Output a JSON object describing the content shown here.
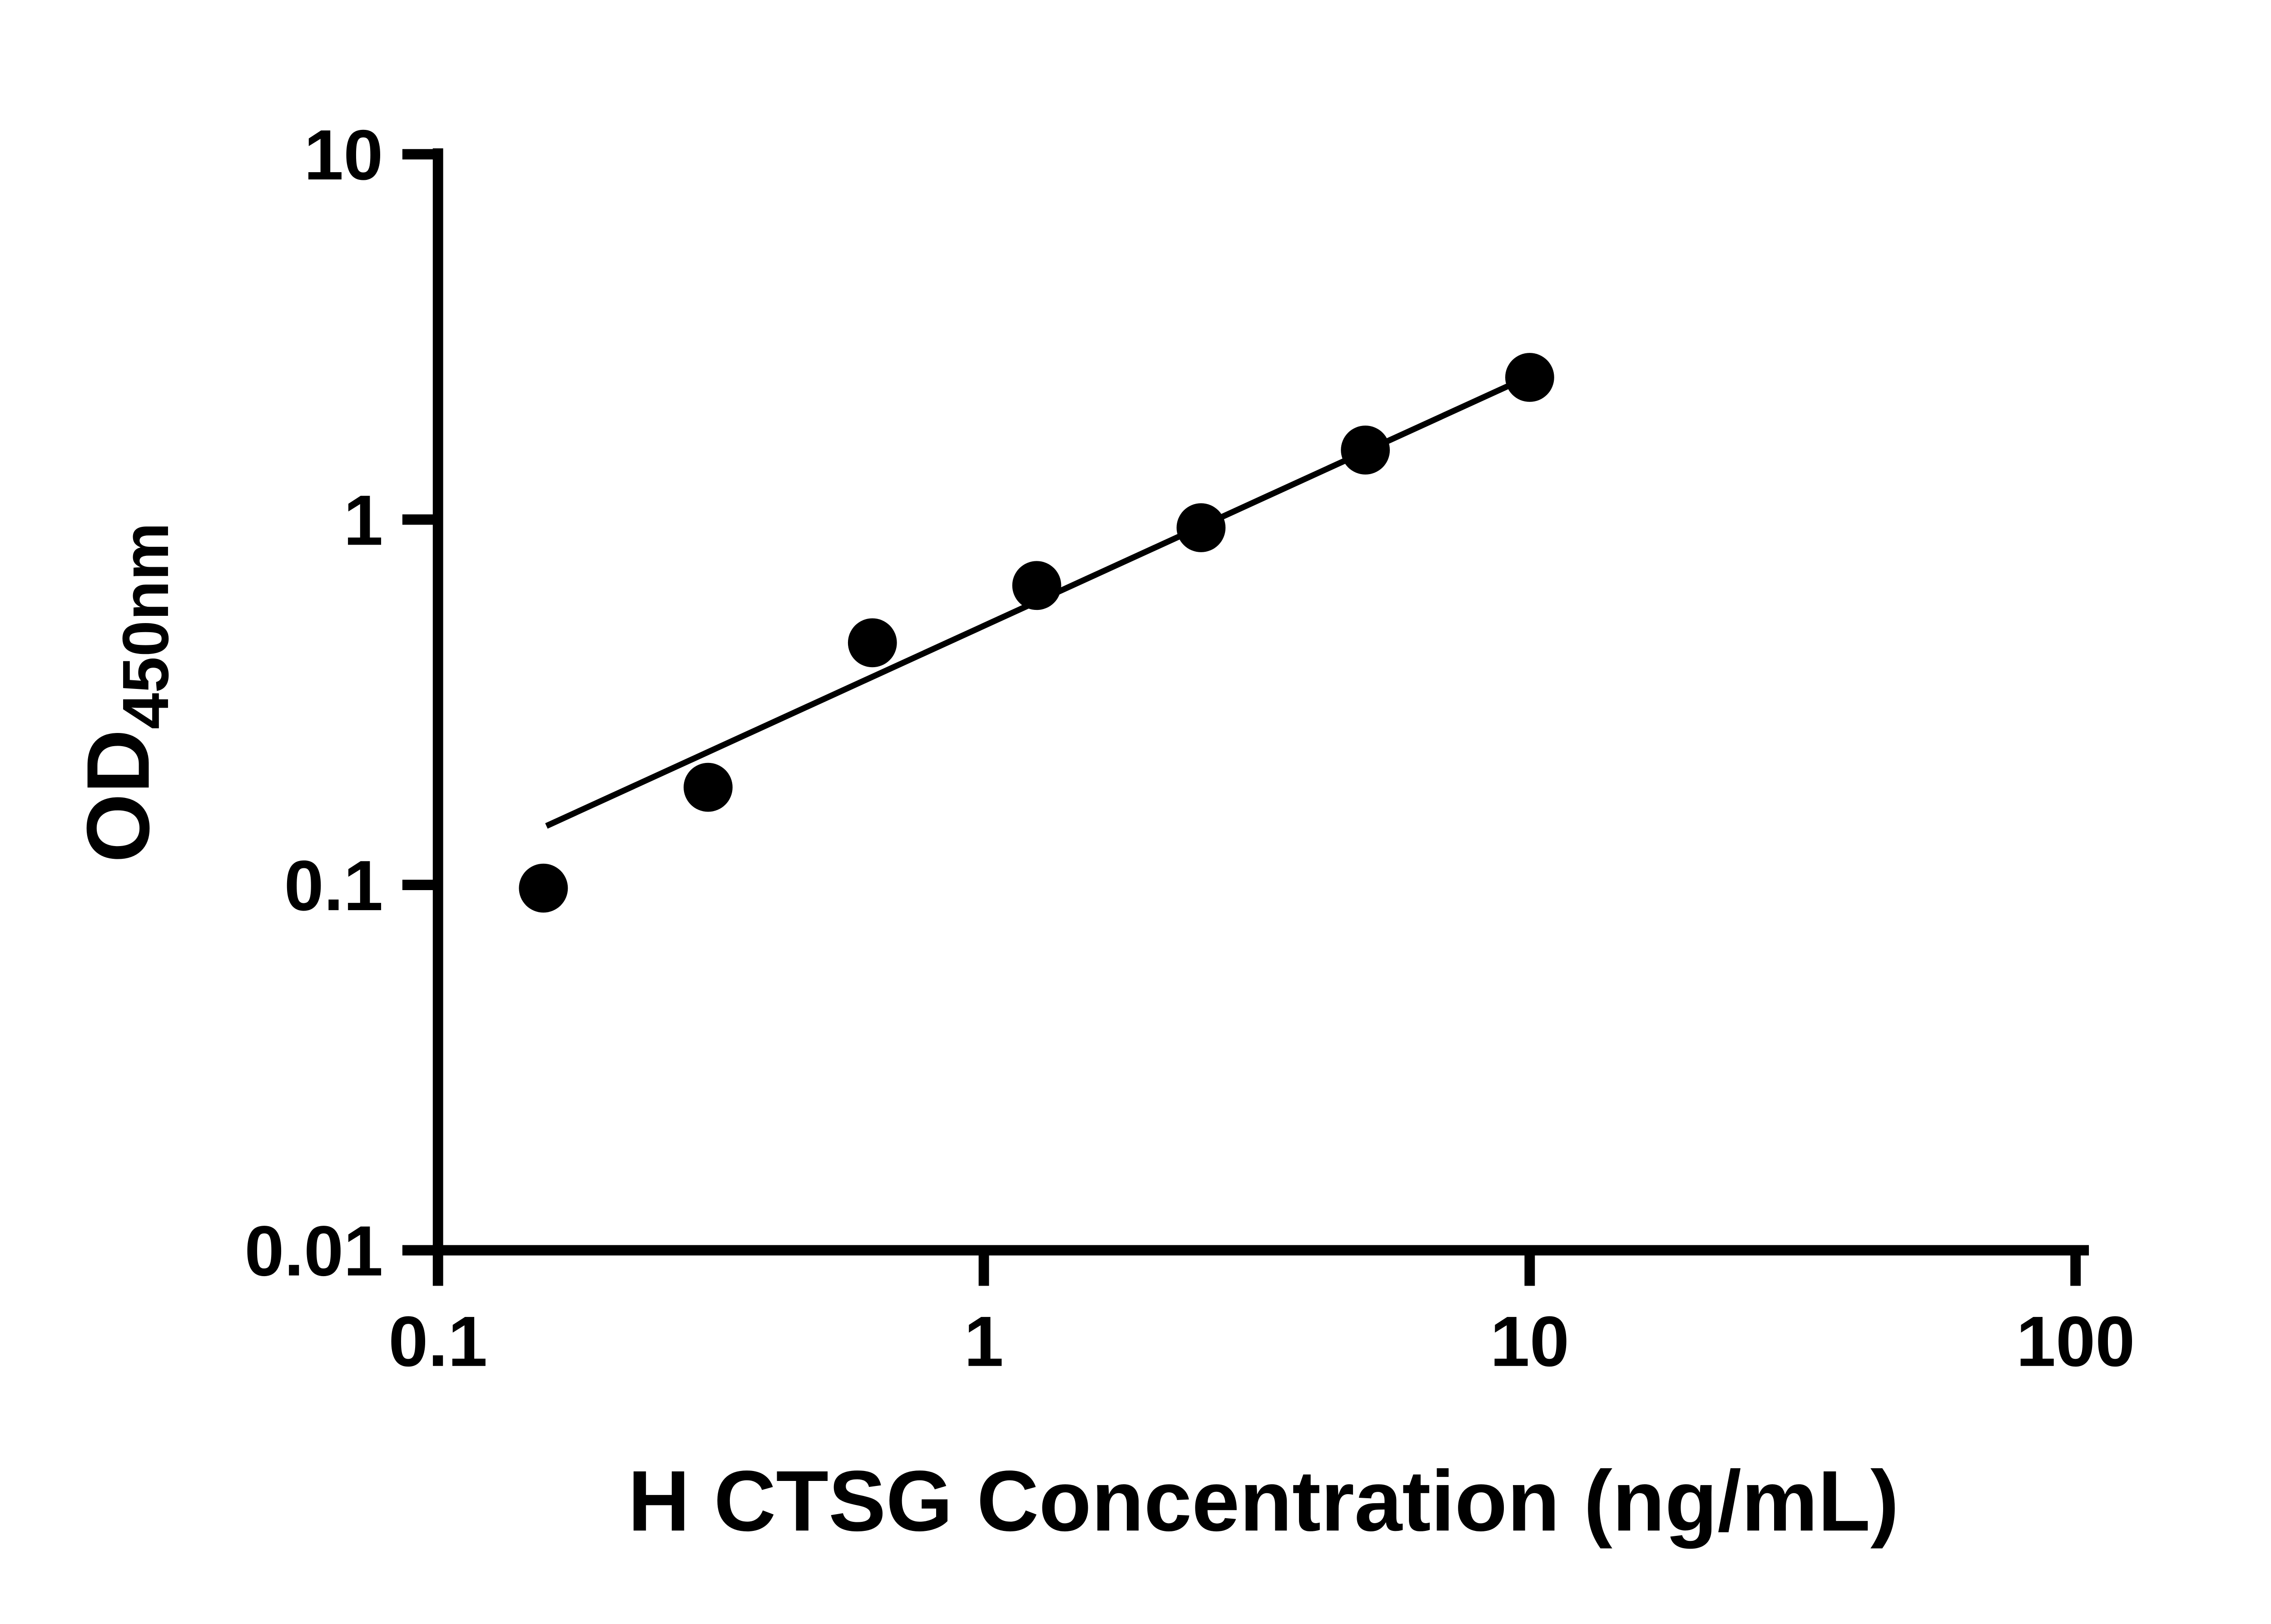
{
  "figure": {
    "background_color": "#ffffff",
    "ink_color": "#000000"
  },
  "chart_data": {
    "type": "scatter",
    "title": "",
    "xlabel": "H CTSG Concentration (ng/mL)",
    "ylabel": "OD",
    "ylabel_subscript": "450nm",
    "x_scale": "log",
    "y_scale": "log",
    "xlim": [
      0.1,
      100
    ],
    "ylim": [
      0.01,
      10
    ],
    "x_ticks": [
      0.1,
      1,
      10,
      100
    ],
    "x_tick_labels": [
      "0.1",
      "1",
      "10",
      "100"
    ],
    "y_ticks": [
      0.01,
      0.1,
      1,
      10
    ],
    "y_tick_labels": [
      "0.01",
      "0.1",
      "1",
      "10"
    ],
    "grid": false,
    "legend": "none",
    "marker_color": "#000000",
    "line_color": "#000000",
    "series": [
      {
        "name": "standard-curve-points",
        "type": "scatter",
        "marker": "filled-circle",
        "points": [
          [
            0.156,
            0.098
          ],
          [
            0.3125,
            0.185
          ],
          [
            0.625,
            0.46
          ],
          [
            1.25,
            0.66
          ],
          [
            2.5,
            0.95
          ],
          [
            5,
            1.55
          ],
          [
            10,
            2.45
          ]
        ]
      },
      {
        "name": "fit-line",
        "type": "line",
        "points": [
          [
            0.158,
            0.145
          ],
          [
            10.3,
            2.52
          ]
        ]
      }
    ]
  }
}
